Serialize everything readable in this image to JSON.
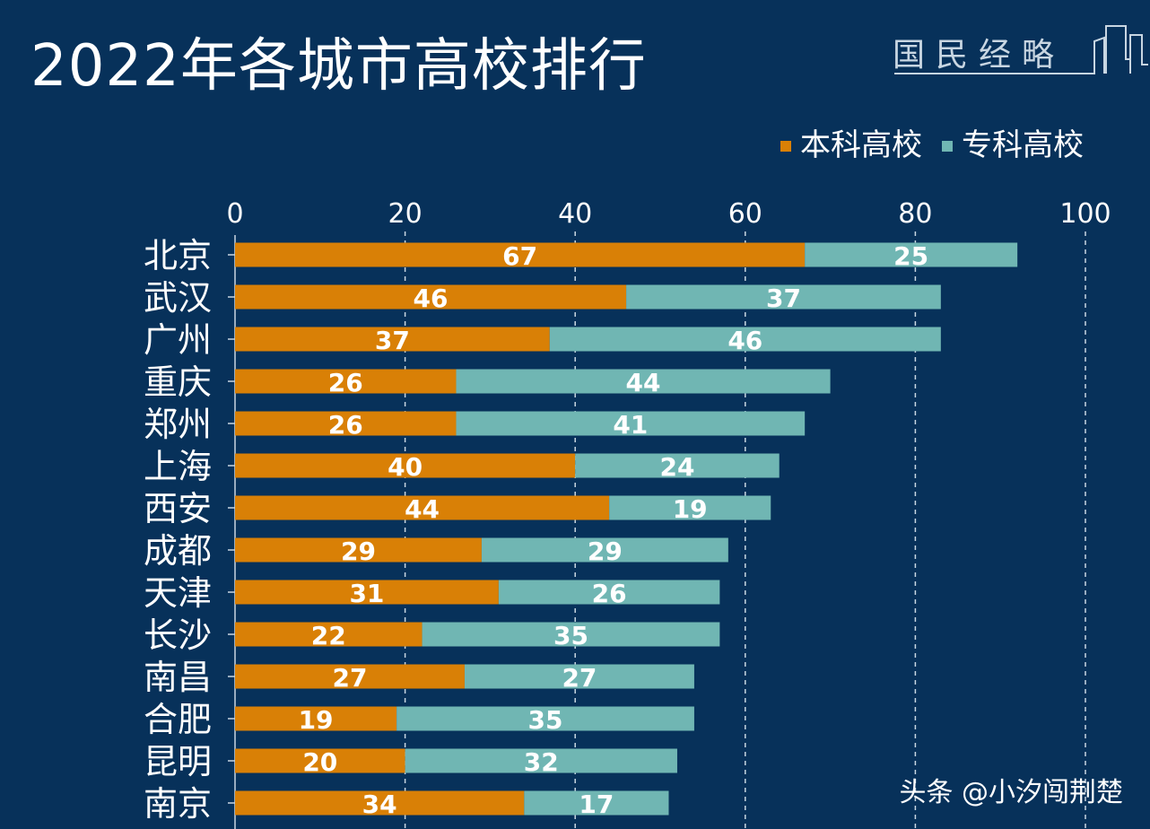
{
  "title": "2022年各城市高校排行",
  "logo_text": "国民经略",
  "footer": "头条 @小汐闯荆楚",
  "colors": {
    "background": "#07315a",
    "undergrad": "#d98006",
    "vocational": "#70b6b3"
  },
  "chart_data": {
    "type": "bar",
    "orientation": "horizontal",
    "stacked": true,
    "title": "2022年各城市高校排行",
    "categories": [
      "北京",
      "武汉",
      "广州",
      "重庆",
      "郑州",
      "上海",
      "西安",
      "成都",
      "天津",
      "长沙",
      "南昌",
      "合肥",
      "昆明",
      "南京"
    ],
    "series": [
      {
        "name": "本科高校",
        "color": "#d98006",
        "values": [
          67,
          46,
          37,
          26,
          26,
          40,
          44,
          29,
          31,
          22,
          27,
          19,
          20,
          34
        ]
      },
      {
        "name": "专科高校",
        "color": "#70b6b3",
        "values": [
          25,
          37,
          46,
          44,
          41,
          24,
          19,
          29,
          26,
          35,
          27,
          35,
          32,
          17
        ]
      }
    ],
    "xlim": [
      0,
      100
    ],
    "x_ticks": [
      "0",
      "20",
      "40",
      "60",
      "80",
      "100"
    ],
    "x_axis_position": "top",
    "grid": "dashed vertical",
    "legend_position": "top-right",
    "data_labels": true
  }
}
